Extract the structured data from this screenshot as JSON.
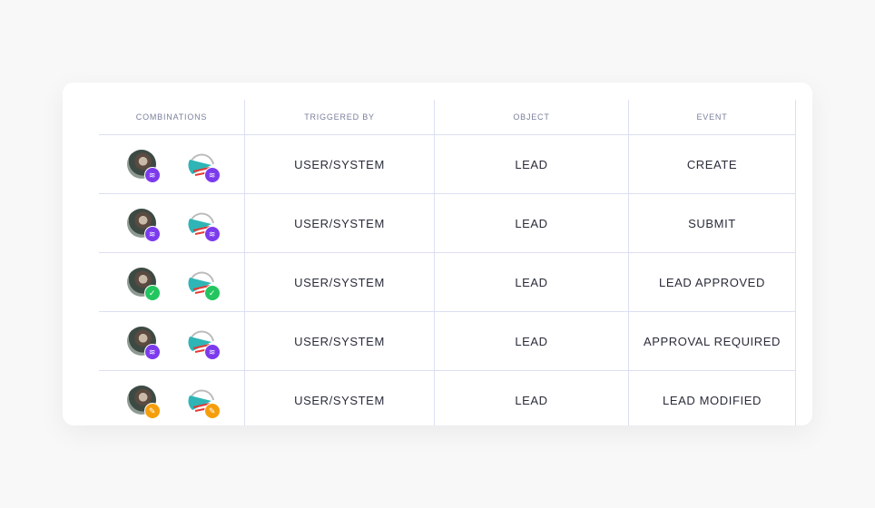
{
  "headers": [
    "COMBINATIONS",
    "TRIGGERED BY",
    "OBJECT",
    "EVENT"
  ],
  "badge_colors": {
    "layers": "#7c3aed",
    "check": "#22c55e",
    "edit": "#f59e0b"
  },
  "rows": [
    {
      "badge": "layers",
      "badge_glyph": "≋",
      "triggered_by": "USER/SYSTEM",
      "object": "LEAD",
      "event": "CREATE"
    },
    {
      "badge": "layers",
      "badge_glyph": "≋",
      "triggered_by": "USER/SYSTEM",
      "object": "LEAD",
      "event": "SUBMIT"
    },
    {
      "badge": "check",
      "badge_glyph": "✓",
      "triggered_by": "USER/SYSTEM",
      "object": "LEAD",
      "event": "LEAD APPROVED"
    },
    {
      "badge": "layers",
      "badge_glyph": "≋",
      "triggered_by": "USER/SYSTEM",
      "object": "LEAD",
      "event": "APPROVAL REQUIRED"
    },
    {
      "badge": "edit",
      "badge_glyph": "✎",
      "triggered_by": "USER/SYSTEM",
      "object": "LEAD",
      "event": "LEAD MODIFIED"
    }
  ]
}
